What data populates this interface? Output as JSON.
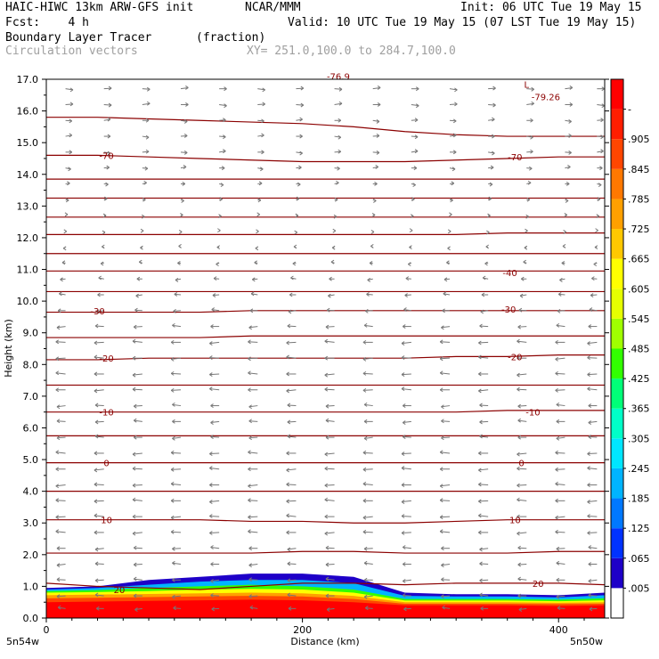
{
  "header": {
    "line1_left": "HAIC-HIWC 13km ARW-GFS init",
    "line1_mid": "NCAR/MMM",
    "line1_right": "Init: 06 UTC Tue 19 May 15",
    "line2_left": "Fcst:    4 h",
    "line2_right": "Valid: 10 UTC Tue 19 May 15 (07 LST Tue 19 May 15)",
    "field_name": "Boundary Layer Tracer",
    "field_units": "(fraction)",
    "vector_name": "Circulation vectors",
    "xy_range": "XY= 251.0,100.0 to 284.7,100.0"
  },
  "axis_end_labels": {
    "left": "5n54w",
    "right": "5n50w"
  },
  "contour_labels": [
    {
      "text": "-70",
      "x": 47,
      "y": 14.6
    },
    {
      "text": "-70",
      "x": 366,
      "y": 14.55
    },
    {
      "text": "-40",
      "x": 362,
      "y": 10.9
    },
    {
      "text": "-30",
      "x": 40,
      "y": 9.7
    },
    {
      "text": "-30",
      "x": 361,
      "y": 9.75
    },
    {
      "text": "-20",
      "x": 47,
      "y": 8.2
    },
    {
      "text": "-20",
      "x": 366,
      "y": 8.25
    },
    {
      "text": "-10",
      "x": 47,
      "y": 6.5
    },
    {
      "text": "-10",
      "x": 380,
      "y": 6.5
    },
    {
      "text": "0",
      "x": 47,
      "y": 4.9
    },
    {
      "text": "0",
      "x": 371,
      "y": 4.9
    },
    {
      "text": "10",
      "x": 47,
      "y": 3.1
    },
    {
      "text": "10",
      "x": 366,
      "y": 3.1
    },
    {
      "text": "20",
      "x": 57,
      "y": 0.9
    },
    {
      "text": "20",
      "x": 384,
      "y": 1.1
    },
    {
      "text": "-79.26",
      "x": 390,
      "y": 16.45
    },
    {
      "text": "L",
      "x": 375,
      "y": 16.85
    },
    {
      "text": "-76.9",
      "x": 228,
      "y": 17.1
    }
  ],
  "chart_data": {
    "type": "contour",
    "xlabel": "Distance (km)",
    "ylabel": "Height (km)",
    "xlim": [
      0,
      436
    ],
    "ylim": [
      0,
      17
    ],
    "xticks": [
      0,
      200,
      400
    ],
    "yticks": [
      "0.0",
      "1.0",
      "2.0",
      "3.0",
      "4.0",
      "5.0",
      "6.0",
      "7.0",
      "8.0",
      "9.0",
      "10.0",
      "11.0",
      "12.0",
      "13.0",
      "14.0",
      "15.0",
      "16.0",
      "17.0"
    ],
    "colorbar": {
      "labels": [
        ".005",
        ".065",
        ".125",
        ".185",
        ".245",
        ".305",
        ".365",
        ".425",
        ".485",
        ".545",
        ".605",
        ".665",
        ".725",
        ".785",
        ".845",
        ".905",
        "-"
      ],
      "colors": [
        "#ffffff",
        "#1e00c8",
        "#0032ff",
        "#0078ff",
        "#00b4ff",
        "#00e6ff",
        "#00ffc8",
        "#00ff78",
        "#32ff00",
        "#a0ff00",
        "#e6ff00",
        "#ffff00",
        "#ffc800",
        "#ffa000",
        "#ff7800",
        "#ff4600",
        "#ff1e00",
        "#ff0000"
      ]
    },
    "temperature_contours": [
      {
        "level": 20,
        "y": [
          1.1,
          1.0,
          0.95,
          0.9,
          1.0,
          1.1,
          1.1,
          1.05,
          1.1,
          1.1,
          1.1,
          1.05
        ]
      },
      {
        "level": null,
        "y": [
          2.05,
          2.05,
          2.05,
          2.05,
          2.05,
          2.1,
          2.1,
          2.05,
          2.05,
          2.05,
          2.1,
          2.1
        ]
      },
      {
        "level": 10,
        "y": [
          3.1,
          3.1,
          3.1,
          3.1,
          3.05,
          3.05,
          3.0,
          3.0,
          3.05,
          3.1,
          3.1,
          3.1
        ]
      },
      {
        "level": null,
        "y": [
          4.0,
          4.0,
          4.0,
          4.0,
          4.0,
          4.0,
          4.0,
          4.0,
          4.0,
          4.0,
          4.0,
          4.0
        ]
      },
      {
        "level": 0,
        "y": [
          4.9,
          4.9,
          4.9,
          4.9,
          4.9,
          4.9,
          4.9,
          4.9,
          4.9,
          4.9,
          4.9,
          4.9
        ]
      },
      {
        "level": null,
        "y": [
          5.75,
          5.75,
          5.75,
          5.75,
          5.75,
          5.75,
          5.75,
          5.75,
          5.75,
          5.75,
          5.75,
          5.75
        ]
      },
      {
        "level": -10,
        "y": [
          6.5,
          6.5,
          6.5,
          6.5,
          6.5,
          6.5,
          6.5,
          6.5,
          6.5,
          6.55,
          6.55,
          6.55
        ]
      },
      {
        "level": null,
        "y": [
          7.35,
          7.35,
          7.35,
          7.35,
          7.35,
          7.35,
          7.35,
          7.35,
          7.35,
          7.35,
          7.35,
          7.35
        ]
      },
      {
        "level": -20,
        "y": [
          8.15,
          8.15,
          8.2,
          8.2,
          8.2,
          8.2,
          8.2,
          8.2,
          8.25,
          8.25,
          8.3,
          8.3
        ]
      },
      {
        "level": null,
        "y": [
          8.85,
          8.85,
          8.85,
          8.85,
          8.9,
          8.9,
          8.9,
          8.9,
          8.9,
          8.9,
          8.9,
          8.9
        ]
      },
      {
        "level": -30,
        "y": [
          9.65,
          9.65,
          9.65,
          9.65,
          9.7,
          9.7,
          9.7,
          9.7,
          9.7,
          9.7,
          9.7,
          9.7
        ]
      },
      {
        "level": null,
        "y": [
          10.3,
          10.3,
          10.3,
          10.3,
          10.3,
          10.3,
          10.3,
          10.3,
          10.3,
          10.3,
          10.3,
          10.3
        ]
      },
      {
        "level": -40,
        "y": [
          10.95,
          10.95,
          10.95,
          10.95,
          10.95,
          10.95,
          10.95,
          10.95,
          10.95,
          10.95,
          10.95,
          10.95
        ]
      },
      {
        "level": null,
        "y": [
          11.5,
          11.5,
          11.5,
          11.5,
          11.5,
          11.5,
          11.5,
          11.5,
          11.5,
          11.5,
          11.5,
          11.5
        ]
      },
      {
        "level": null,
        "y": [
          12.1,
          12.1,
          12.1,
          12.1,
          12.1,
          12.1,
          12.1,
          12.1,
          12.1,
          12.15,
          12.15,
          12.15
        ]
      },
      {
        "level": null,
        "y": [
          12.65,
          12.65,
          12.65,
          12.65,
          12.65,
          12.65,
          12.65,
          12.65,
          12.65,
          12.65,
          12.65,
          12.65
        ]
      },
      {
        "level": null,
        "y": [
          13.25,
          13.25,
          13.25,
          13.25,
          13.25,
          13.25,
          13.25,
          13.25,
          13.25,
          13.25,
          13.25,
          13.25
        ]
      },
      {
        "level": null,
        "y": [
          13.85,
          13.85,
          13.85,
          13.85,
          13.85,
          13.85,
          13.85,
          13.85,
          13.85,
          13.85,
          13.85,
          13.85
        ]
      },
      {
        "level": -70,
        "y": [
          14.6,
          14.6,
          14.55,
          14.5,
          14.45,
          14.4,
          14.4,
          14.4,
          14.45,
          14.5,
          14.55,
          14.55
        ]
      },
      {
        "level": null,
        "y": [
          15.8,
          15.8,
          15.75,
          15.7,
          15.65,
          15.6,
          15.5,
          15.35,
          15.25,
          15.2,
          15.2,
          15.2
        ]
      }
    ],
    "contour_x": [
      0,
      40,
      80,
      120,
      160,
      200,
      240,
      280,
      320,
      360,
      400,
      436
    ],
    "tracer_bands": [
      {
        "value": 0.07,
        "color": "#1e00c8",
        "top": [
          0.95,
          1.0,
          1.2,
          1.3,
          1.4,
          1.4,
          1.3,
          0.8,
          0.75,
          0.75,
          0.72,
          0.8
        ]
      },
      {
        "value": 0.2,
        "color": "#00b4ff",
        "top": [
          0.9,
          0.95,
          1.05,
          1.15,
          1.2,
          1.2,
          1.1,
          0.7,
          0.68,
          0.68,
          0.65,
          0.72
        ]
      },
      {
        "value": 0.4,
        "color": "#32ff00",
        "top": [
          0.85,
          0.88,
          0.95,
          1.0,
          1.05,
          1.0,
          0.9,
          0.6,
          0.6,
          0.6,
          0.58,
          0.62
        ]
      },
      {
        "value": 0.55,
        "color": "#ffff00",
        "top": [
          0.8,
          0.82,
          0.85,
          0.9,
          0.92,
          0.9,
          0.8,
          0.55,
          0.55,
          0.55,
          0.53,
          0.56
        ]
      },
      {
        "value": 0.7,
        "color": "#ffa000",
        "top": [
          0.72,
          0.74,
          0.76,
          0.78,
          0.8,
          0.78,
          0.7,
          0.5,
          0.5,
          0.5,
          0.48,
          0.5
        ]
      },
      {
        "value": 0.85,
        "color": "#ff4600",
        "top": [
          0.62,
          0.64,
          0.66,
          0.68,
          0.7,
          0.68,
          0.6,
          0.45,
          0.45,
          0.45,
          0.44,
          0.45
        ]
      },
      {
        "value": 0.95,
        "color": "#ff0000",
        "top": [
          0.5,
          0.52,
          0.54,
          0.56,
          0.58,
          0.56,
          0.5,
          0.4,
          0.4,
          0.4,
          0.38,
          0.4
        ]
      }
    ],
    "vector_grid": {
      "x": [
        15,
        45,
        75,
        105,
        135,
        165,
        195,
        225,
        255,
        285,
        315,
        345,
        375,
        405,
        430
      ],
      "y": [
        0.3,
        0.7,
        1.2,
        1.7,
        2.2,
        2.7,
        3.2,
        3.7,
        4.2,
        4.7,
        5.2,
        5.7,
        6.2,
        6.7,
        7.2,
        7.7,
        8.2,
        8.7,
        9.2,
        9.7,
        10.2,
        10.7,
        11.2,
        11.7,
        12.2,
        12.7,
        13.2,
        13.7,
        14.2,
        14.7,
        15.2,
        15.7,
        16.2,
        16.7
      ],
      "u_profile": [
        -0.7,
        -0.8,
        -0.8,
        -0.8,
        -0.8,
        -0.9,
        -0.9,
        -0.9,
        -0.9,
        -0.9,
        -0.9,
        -0.8,
        -0.8,
        -0.8,
        -0.9,
        -0.9,
        -0.9,
        -0.9,
        -0.8,
        -0.7,
        -0.6,
        -0.5,
        -0.3,
        -0.2,
        0.1,
        0.2,
        0.3,
        0.4,
        0.5,
        0.6,
        0.6,
        0.6,
        0.7,
        0.7
      ]
    }
  }
}
